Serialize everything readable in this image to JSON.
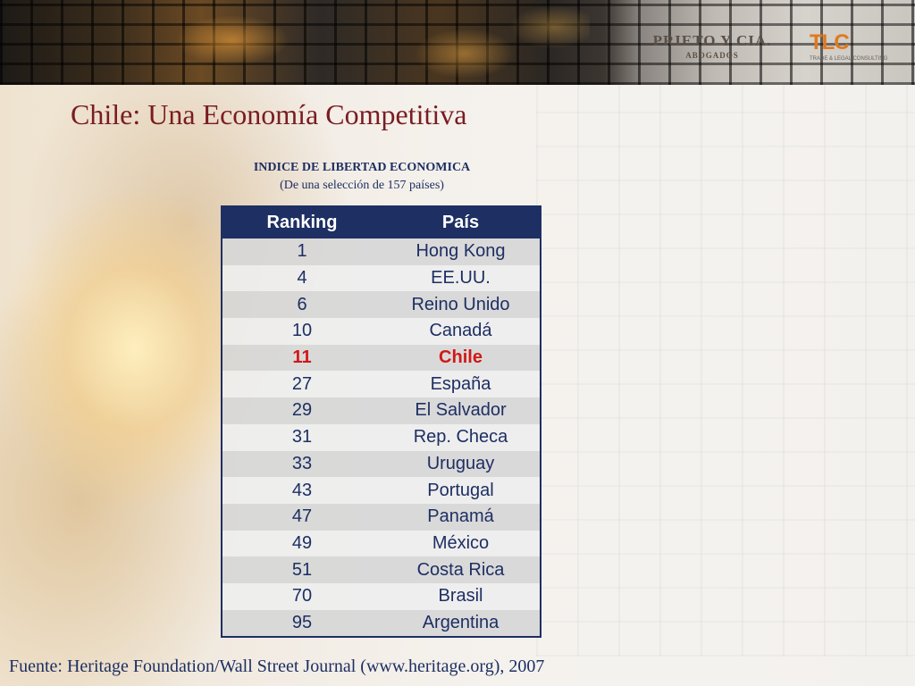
{
  "header": {
    "logo_prieto_main": "PRIETO Y CIA.",
    "logo_prieto_sub": "ABOGADOS",
    "logo_tlc_mark": "TLC",
    "logo_tlc_tagline": "TRADE & LEGAL CONSULTING"
  },
  "slide": {
    "title": "Chile: Una Economía Competitiva",
    "table_title": "INDICE DE LIBERTAD ECONOMICA",
    "table_subtitle": "(De una selección de 157 países)",
    "source": "Fuente: Heritage Foundation/Wall Street Journal (www.heritage.org), 2007"
  },
  "table": {
    "headers": [
      "Ranking",
      "País"
    ],
    "rows": [
      {
        "rank": "1",
        "country": "Hong Kong"
      },
      {
        "rank": "4",
        "country": "EE.UU."
      },
      {
        "rank": "6",
        "country": "Reino Unido"
      },
      {
        "rank": "10",
        "country": "Canadá"
      },
      {
        "rank": "11",
        "country": "Chile",
        "highlight": true
      },
      {
        "rank": "27",
        "country": "España"
      },
      {
        "rank": "29",
        "country": "El Salvador"
      },
      {
        "rank": "31",
        "country": "Rep. Checa"
      },
      {
        "rank": "33",
        "country": "Uruguay"
      },
      {
        "rank": "43",
        "country": "Portugal"
      },
      {
        "rank": "47",
        "country": "Panamá"
      },
      {
        "rank": "49",
        "country": "México"
      },
      {
        "rank": "51",
        "country": "Costa Rica"
      },
      {
        "rank": "70",
        "country": "Brasil"
      },
      {
        "rank": "95",
        "country": "Argentina"
      }
    ]
  },
  "colors": {
    "title": "#7a1c22",
    "table_header_bg": "#1d2f63",
    "text_navy": "#1d2f63",
    "highlight": "#d01818",
    "tlc_orange": "#e07a1e"
  }
}
